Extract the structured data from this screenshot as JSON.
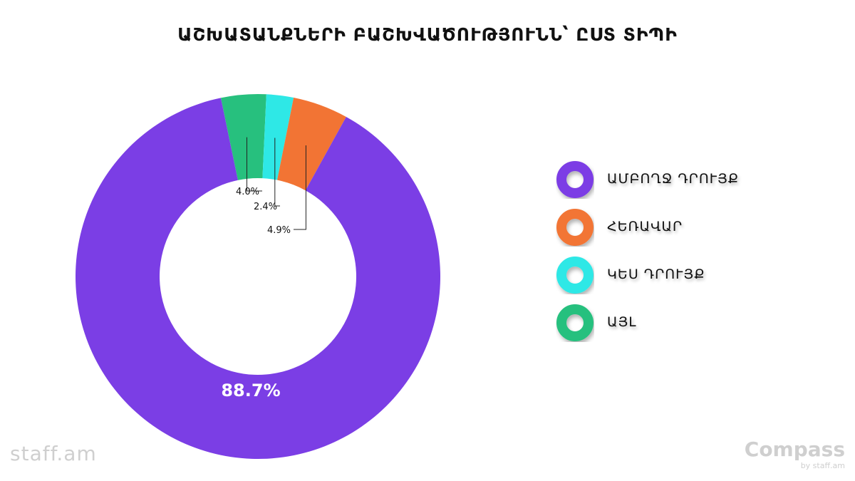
{
  "chart_data": {
    "type": "pie",
    "title": "ԱՇԽԱՏԱՆՔՆԵՐԻ ԲԱՇԽՎԱԾՈՒԹՅՈՒՆՆ՝ ԸՍՏ ՏԻՊԻ",
    "slices": [
      {
        "label": "ԱՄԲՈՂՋ ԴՐՈՒՅՔ",
        "value": 88.7,
        "value_label": "88.7%",
        "color": "#7b3ee5"
      },
      {
        "label": "ՀԵՌԱՎԱՐ",
        "value": 4.9,
        "value_label": "4.9%",
        "color": "#f27434"
      },
      {
        "label": "ԿԵՍ ԴՐՈՒՅՔ",
        "value": 2.4,
        "value_label": "2.4%",
        "color": "#2ee8e6"
      },
      {
        "label": "ԱՅԼ",
        "value": 4.0,
        "value_label": "4.0%",
        "color": "#27c07e"
      }
    ],
    "legend_position": "right"
  },
  "branding": {
    "left_logo": "staff.am",
    "right_logo": "Compass",
    "right_sub": "by staff.am"
  }
}
